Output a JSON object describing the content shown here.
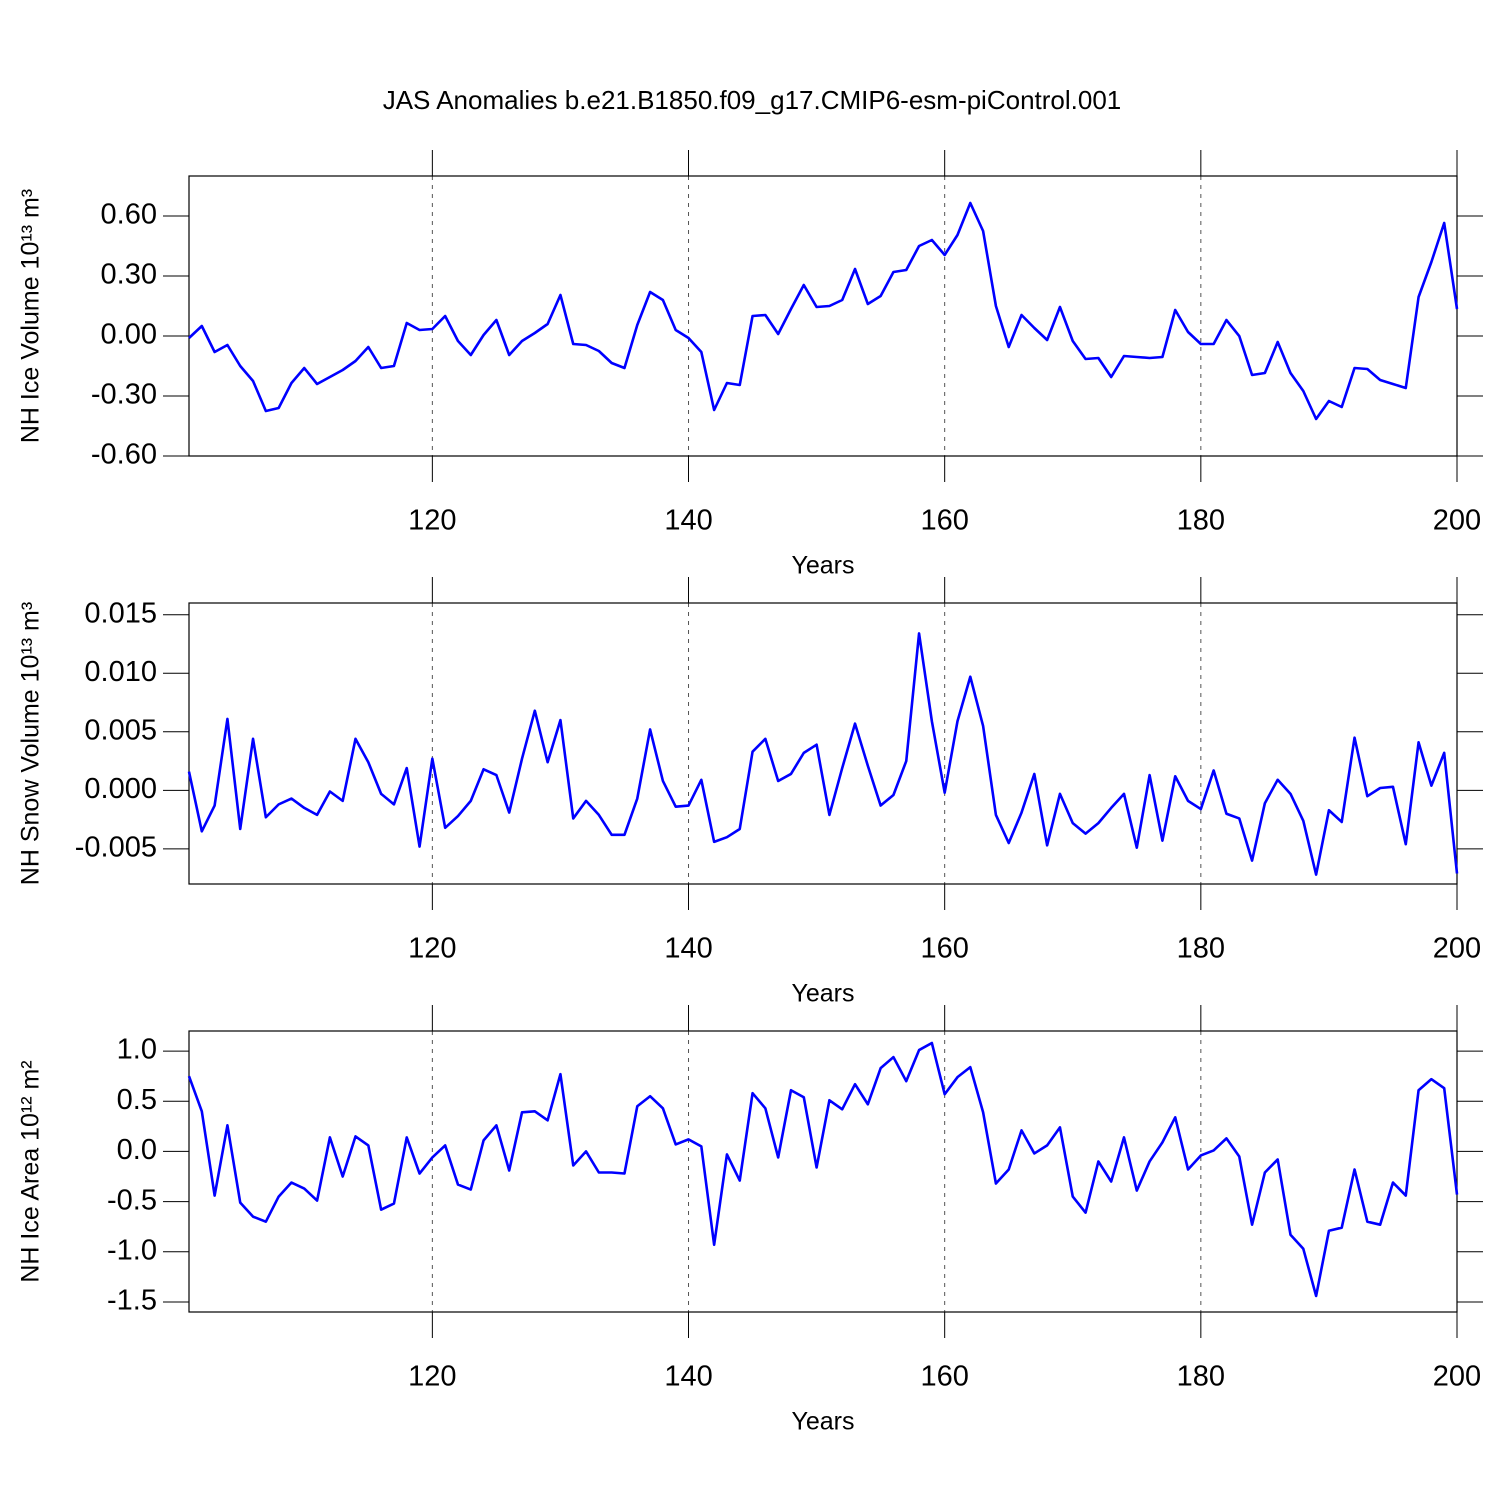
{
  "chart_data": [
    {
      "type": "line",
      "title": "JAS Anomalies b.e21.B1850.f09_g17.CMIP6-esm-piControl.001",
      "ylabel": "NH Ice Volume 10¹³ m³",
      "xlabel": "Years",
      "color": "#0000ff",
      "grid": true,
      "xlim": [
        101,
        200
      ],
      "xticks": [
        120,
        140,
        160,
        180,
        200
      ],
      "ylim": [
        -0.6,
        0.8
      ],
      "yticks": [
        {
          "value": -0.6,
          "label": "-0.60"
        },
        {
          "value": -0.3,
          "label": "-0.30"
        },
        {
          "value": 0,
          "label": "0.00"
        },
        {
          "value": 0.3,
          "label": "0.30"
        },
        {
          "value": 0.6,
          "label": "0.60"
        }
      ],
      "x": [
        101,
        102,
        103,
        104,
        105,
        106,
        107,
        108,
        109,
        110,
        111,
        112,
        113,
        114,
        115,
        116,
        117,
        118,
        119,
        120,
        121,
        122,
        123,
        124,
        125,
        126,
        127,
        128,
        129,
        130,
        131,
        132,
        133,
        134,
        135,
        136,
        137,
        138,
        139,
        140,
        141,
        142,
        143,
        144,
        145,
        146,
        147,
        148,
        149,
        150,
        151,
        152,
        153,
        154,
        155,
        156,
        157,
        158,
        159,
        160,
        161,
        162,
        163,
        164,
        165,
        166,
        167,
        168,
        169,
        170,
        171,
        172,
        173,
        174,
        175,
        176,
        177,
        178,
        179,
        180,
        181,
        182,
        183,
        184,
        185,
        186,
        187,
        188,
        189,
        190,
        191,
        192,
        193,
        194,
        195,
        196,
        197,
        198,
        199,
        200
      ],
      "values": [
        -0.01,
        0.05,
        -0.08,
        -0.045,
        -0.15,
        -0.225,
        -0.375,
        -0.36,
        -0.235,
        -0.16,
        -0.24,
        -0.205,
        -0.17,
        -0.125,
        -0.055,
        -0.16,
        -0.15,
        0.065,
        0.03,
        0.035,
        0.1,
        -0.025,
        -0.095,
        0.005,
        0.08,
        -0.095,
        -0.025,
        0.015,
        0.06,
        0.205,
        -0.04,
        -0.045,
        -0.075,
        -0.135,
        -0.16,
        0.055,
        0.22,
        0.18,
        0.03,
        -0.01,
        -0.08,
        -0.37,
        -0.235,
        -0.245,
        0.1,
        0.105,
        0.01,
        0.135,
        0.255,
        0.145,
        0.15,
        0.18,
        0.335,
        0.16,
        0.2,
        0.32,
        0.33,
        0.45,
        0.48,
        0.405,
        0.505,
        0.665,
        0.525,
        0.15,
        -0.055,
        0.105,
        0.04,
        -0.02,
        0.145,
        -0.025,
        -0.115,
        -0.11,
        -0.205,
        -0.1,
        -0.105,
        -0.11,
        -0.105,
        0.13,
        0.02,
        -0.04,
        -0.04,
        0.08,
        0.0,
        -0.195,
        -0.185,
        -0.03,
        -0.185,
        -0.275,
        -0.415,
        -0.325,
        -0.355,
        -0.16,
        -0.165,
        -0.22,
        -0.24,
        -0.26,
        0.195,
        0.37,
        0.565,
        0.135
      ]
    },
    {
      "type": "line",
      "ylabel": "NH Snow Volume 10¹³ m³",
      "xlabel": "Years",
      "color": "#0000ff",
      "grid": true,
      "xlim": [
        101,
        200
      ],
      "xticks": [
        120,
        140,
        160,
        180,
        200
      ],
      "ylim": [
        -0.008,
        0.016
      ],
      "yticks": [
        {
          "value": -0.005,
          "label": "-0.005"
        },
        {
          "value": 0,
          "label": "0.000"
        },
        {
          "value": 0.005,
          "label": "0.005"
        },
        {
          "value": 0.01,
          "label": "0.010"
        },
        {
          "value": 0.015,
          "label": "0.015"
        }
      ],
      "x": [
        101,
        102,
        103,
        104,
        105,
        106,
        107,
        108,
        109,
        110,
        111,
        112,
        113,
        114,
        115,
        116,
        117,
        118,
        119,
        120,
        121,
        122,
        123,
        124,
        125,
        126,
        127,
        128,
        129,
        130,
        131,
        132,
        133,
        134,
        135,
        136,
        137,
        138,
        139,
        140,
        141,
        142,
        143,
        144,
        145,
        146,
        147,
        148,
        149,
        150,
        151,
        152,
        153,
        154,
        155,
        156,
        157,
        158,
        159,
        160,
        161,
        162,
        163,
        164,
        165,
        166,
        167,
        168,
        169,
        170,
        171,
        172,
        173,
        174,
        175,
        176,
        177,
        178,
        179,
        180,
        181,
        182,
        183,
        184,
        185,
        186,
        187,
        188,
        189,
        190,
        191,
        192,
        193,
        194,
        195,
        196,
        197,
        198,
        199,
        200
      ],
      "values": [
        0.0016,
        -0.0035,
        -0.0013,
        0.0061,
        -0.0033,
        0.0044,
        -0.0023,
        -0.0012,
        -0.0007,
        -0.0015,
        -0.0021,
        -0.0001,
        -0.0009,
        0.0044,
        0.0024,
        -0.0003,
        -0.0012,
        0.0019,
        -0.0048,
        0.0027,
        -0.0032,
        -0.0022,
        -0.0009,
        0.0018,
        0.0013,
        -0.0019,
        0.0027,
        0.0068,
        0.0024,
        0.006,
        -0.0024,
        -0.0009,
        -0.0021,
        -0.0038,
        -0.0038,
        -0.0007,
        0.0052,
        0.0008,
        -0.0014,
        -0.0013,
        0.0009,
        -0.0044,
        -0.004,
        -0.0033,
        0.0033,
        0.0044,
        0.0008,
        0.0014,
        0.0032,
        0.0039,
        -0.0021,
        0.0019,
        0.0057,
        0.0021,
        -0.0013,
        -0.0004,
        0.0025,
        0.0134,
        0.0059,
        -0.0002,
        0.0059,
        0.0097,
        0.0055,
        -0.0021,
        -0.0045,
        -0.0019,
        0.0014,
        -0.0047,
        -0.0003,
        -0.0028,
        -0.0037,
        -0.0028,
        -0.0015,
        -0.0003,
        -0.0049,
        0.0013,
        -0.0043,
        0.0012,
        -0.0009,
        -0.0016,
        0.0017,
        -0.002,
        -0.0024,
        -0.006,
        -0.0011,
        0.0009,
        -0.0003,
        -0.0026,
        -0.0072,
        -0.0017,
        -0.0027,
        0.0045,
        -0.0005,
        0.0002,
        0.0003,
        -0.0046,
        0.0041,
        0.0004,
        0.0032,
        -0.0071
      ]
    },
    {
      "type": "line",
      "ylabel": "NH Ice Area 10¹² m²",
      "xlabel": "Years",
      "color": "#0000ff",
      "grid": true,
      "xlim": [
        101,
        200
      ],
      "xticks": [
        120,
        140,
        160,
        180,
        200
      ],
      "ylim": [
        -1.6,
        1.2
      ],
      "yticks": [
        {
          "value": -1.5,
          "label": "-1.5"
        },
        {
          "value": -1,
          "label": "-1.0"
        },
        {
          "value": -0.5,
          "label": "-0.5"
        },
        {
          "value": 0,
          "label": "0.0"
        },
        {
          "value": 0.5,
          "label": "0.5"
        },
        {
          "value": 1,
          "label": "1.0"
        }
      ],
      "x": [
        101,
        102,
        103,
        104,
        105,
        106,
        107,
        108,
        109,
        110,
        111,
        112,
        113,
        114,
        115,
        116,
        117,
        118,
        119,
        120,
        121,
        122,
        123,
        124,
        125,
        126,
        127,
        128,
        129,
        130,
        131,
        132,
        133,
        134,
        135,
        136,
        137,
        138,
        139,
        140,
        141,
        142,
        143,
        144,
        145,
        146,
        147,
        148,
        149,
        150,
        151,
        152,
        153,
        154,
        155,
        156,
        157,
        158,
        159,
        160,
        161,
        162,
        163,
        164,
        165,
        166,
        167,
        168,
        169,
        170,
        171,
        172,
        173,
        174,
        175,
        176,
        177,
        178,
        179,
        180,
        181,
        182,
        183,
        184,
        185,
        186,
        187,
        188,
        189,
        190,
        191,
        192,
        193,
        194,
        195,
        196,
        197,
        198,
        199,
        200
      ],
      "values": [
        0.75,
        0.4,
        -0.44,
        0.26,
        -0.51,
        -0.65,
        -0.7,
        -0.45,
        -0.31,
        -0.37,
        -0.49,
        0.14,
        -0.25,
        0.15,
        0.06,
        -0.58,
        -0.52,
        0.14,
        -0.22,
        -0.06,
        0.06,
        -0.33,
        -0.38,
        0.11,
        0.26,
        -0.19,
        0.39,
        0.4,
        0.31,
        0.77,
        -0.14,
        0.0,
        -0.21,
        -0.21,
        -0.22,
        0.45,
        0.55,
        0.43,
        0.07,
        0.12,
        0.05,
        -0.93,
        -0.03,
        -0.29,
        0.58,
        0.43,
        -0.06,
        0.61,
        0.54,
        -0.16,
        0.51,
        0.42,
        0.67,
        0.47,
        0.83,
        0.94,
        0.7,
        1.01,
        1.08,
        0.57,
        0.74,
        0.84,
        0.39,
        -0.32,
        -0.18,
        0.21,
        -0.02,
        0.06,
        0.24,
        -0.45,
        -0.61,
        -0.1,
        -0.3,
        0.14,
        -0.39,
        -0.1,
        0.09,
        0.34,
        -0.18,
        -0.04,
        0.01,
        0.13,
        -0.05,
        -0.73,
        -0.21,
        -0.08,
        -0.83,
        -0.97,
        -1.44,
        -0.79,
        -0.76,
        -0.18,
        -0.7,
        -0.73,
        -0.31,
        -0.44,
        0.61,
        0.72,
        0.63,
        -0.43
      ]
    }
  ]
}
